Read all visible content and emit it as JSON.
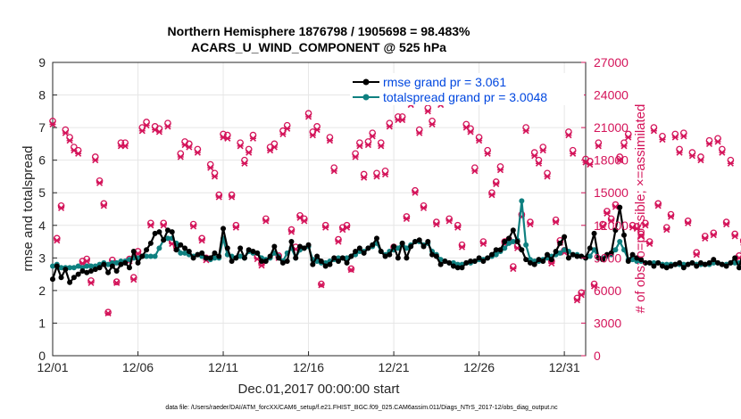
{
  "chart_data": {
    "type": "line",
    "title_line1": "Northern Hemisphere 1876798 / 1905698 = 98.483%",
    "title_line2": "ACARS_U_WIND_COMPONENT @ 525 hPa",
    "xlabel": "Dec.01,2017 00:00:00 start",
    "ylabel_left": "rmse and totalspread",
    "ylabel_right": "# of obs: o=possible; ×=assimilated",
    "footnote": "data file: /Users/raeder/DAI/ATM_forcXX/CAM6_setup/f.e21.FHIST_BGC.f09_025.CAM6assim.011/Diags_NTrS_2017-12/obs_diag_output.nc",
    "xlim": [
      1,
      32.25
    ],
    "ylim_left": [
      0,
      9
    ],
    "ylim_right": [
      0,
      27000
    ],
    "x_ticks": [
      1,
      6,
      11,
      16,
      21,
      26,
      31
    ],
    "x_tick_labels": [
      "12/01",
      "12/06",
      "12/11",
      "12/16",
      "12/21",
      "12/26",
      "12/31"
    ],
    "y_left_ticks": [
      "0",
      "1",
      "2",
      "3",
      "4",
      "5",
      "6",
      "7",
      "8",
      "9"
    ],
    "y_right_ticks": [
      "0",
      "3000",
      "6000",
      "9000",
      "12000",
      "15000",
      "18000",
      "21000",
      "24000",
      "27000"
    ],
    "colors": {
      "rmse": "#000000",
      "spread": "#0f8080",
      "obs": "#d4145a",
      "axis_right": "#d4145a",
      "legend_text": "#0047e0",
      "grid": "#e6e6e6"
    },
    "legend": [
      {
        "name": "rmse grand pr = 3.061",
        "color": "#000000"
      },
      {
        "name": "totalspread grand pr = 3.0048",
        "color": "#0f8080"
      }
    ],
    "series": [
      {
        "name": "rmse",
        "x_start": 1,
        "x_step": 0.25,
        "values": [
          2.35,
          2.75,
          2.4,
          2.65,
          2.25,
          2.4,
          2.5,
          2.6,
          2.55,
          2.6,
          2.65,
          2.7,
          2.8,
          2.55,
          2.75,
          2.6,
          2.8,
          2.85,
          2.7,
          3.2,
          2.85,
          3.05,
          3.25,
          3.45,
          3.75,
          3.8,
          3.55,
          3.85,
          3.8,
          3.25,
          3.4,
          3.3,
          3.2,
          3.0,
          3.1,
          3.15,
          3.0,
          3.0,
          3.15,
          3.05,
          3.9,
          3.3,
          2.9,
          3.0,
          3.3,
          3.0,
          3.25,
          3.2,
          3.15,
          2.9,
          2.9,
          3.05,
          3.35,
          3.0,
          2.85,
          2.9,
          3.5,
          3.0,
          3.35,
          3.3,
          3.4,
          2.8,
          3.05,
          2.9,
          2.75,
          2.8,
          3.0,
          2.9,
          3.0,
          2.85,
          3.05,
          3.2,
          3.3,
          3.15,
          3.3,
          3.4,
          3.6,
          3.2,
          3.05,
          3.1,
          3.35,
          3.0,
          3.45,
          3.0,
          3.35,
          3.5,
          3.55,
          3.35,
          3.5,
          3.1,
          3.05,
          2.8,
          2.9,
          2.85,
          2.75,
          2.7,
          2.7,
          2.85,
          2.9,
          2.9,
          3.0,
          2.9,
          3.0,
          3.1,
          3.25,
          3.25,
          3.5,
          3.6,
          3.85,
          3.5,
          3.25,
          2.95,
          2.85,
          2.8,
          2.95,
          2.9,
          3.1,
          2.95,
          3.2,
          3.45,
          3.65,
          3.0,
          3.1,
          3.05,
          3.05,
          3.0,
          3.3,
          3.75,
          3.0,
          2.95,
          3.1,
          3.15,
          3.85,
          4.55,
          3.7,
          2.9,
          3.1,
          3.0,
          2.95,
          2.85,
          2.85,
          2.75,
          2.85,
          2.75,
          2.7,
          2.75,
          2.8,
          2.85,
          2.7,
          2.8,
          2.85,
          2.75,
          2.85,
          2.8,
          2.85,
          2.95,
          2.85,
          2.8,
          2.75,
          2.85,
          3.0,
          2.7,
          3.2,
          3.0,
          2.75
        ],
        "marker": "circle"
      },
      {
        "name": "totalspread",
        "x_start": 1,
        "x_step": 0.25,
        "values": [
          2.75,
          2.8,
          2.7,
          2.7,
          2.7,
          2.7,
          2.75,
          2.7,
          2.75,
          2.75,
          2.75,
          2.8,
          2.85,
          2.8,
          2.85,
          2.85,
          2.9,
          2.9,
          2.95,
          3.0,
          3.0,
          3.05,
          3.05,
          3.05,
          3.05,
          3.3,
          3.55,
          3.6,
          3.6,
          3.45,
          3.15,
          3.15,
          3.1,
          3.05,
          3.1,
          3.05,
          3.0,
          2.95,
          3.0,
          3.0,
          3.6,
          3.1,
          3.05,
          3.0,
          3.05,
          3.0,
          3.2,
          3.15,
          3.15,
          3.0,
          2.95,
          3.0,
          3.15,
          3.05,
          2.9,
          3.15,
          3.3,
          3.0,
          3.25,
          3.3,
          3.35,
          2.95,
          2.9,
          2.85,
          2.85,
          2.9,
          2.95,
          3.0,
          3.0,
          3.0,
          3.05,
          3.1,
          3.2,
          3.2,
          3.3,
          3.35,
          3.45,
          3.2,
          3.1,
          3.2,
          3.25,
          3.3,
          3.45,
          3.3,
          3.4,
          3.5,
          3.5,
          3.4,
          3.45,
          3.2,
          3.1,
          2.95,
          2.9,
          2.85,
          2.85,
          2.8,
          2.8,
          2.85,
          2.85,
          2.9,
          2.95,
          2.95,
          3.0,
          3.05,
          3.1,
          3.2,
          3.3,
          3.45,
          3.5,
          3.55,
          4.75,
          3.4,
          2.95,
          2.9,
          2.9,
          2.95,
          3.0,
          3.05,
          3.1,
          3.15,
          3.25,
          3.2,
          3.1,
          3.1,
          3.05,
          3.0,
          3.05,
          3.25,
          3.0,
          3.0,
          3.05,
          3.1,
          3.25,
          3.5,
          3.25,
          2.95,
          2.95,
          2.9,
          2.9,
          2.85,
          2.85,
          2.85,
          2.85,
          2.8,
          2.8,
          2.8,
          2.8,
          2.8,
          2.8,
          2.8,
          2.85,
          2.8,
          2.8,
          2.8,
          2.8,
          2.85,
          2.85,
          2.8,
          2.8,
          2.85,
          2.85,
          2.85,
          2.95,
          3.6,
          2.9,
          2.85
        ],
        "marker": "circle"
      },
      {
        "name": "obs_possible",
        "axis": "right",
        "x_start": 1,
        "x_step": 0.25,
        "values": [
          21600,
          10800,
          13800,
          20800,
          20100,
          19200,
          18900,
          8700,
          8900,
          6900,
          18300,
          16100,
          14000,
          4000,
          8800,
          6800,
          19600,
          19600,
          8900,
          7200,
          9600,
          21000,
          21500,
          12200,
          21100,
          20900,
          12200,
          21400,
          10500,
          10100,
          18600,
          19700,
          19500,
          12100,
          19000,
          10800,
          9000,
          17600,
          16800,
          14800,
          20400,
          20300,
          14800,
          12000,
          19600,
          18000,
          19000,
          20300,
          9100,
          8500,
          12600,
          19200,
          19500,
          9200,
          20700,
          21200,
          11600,
          10000,
          12900,
          12600,
          22300,
          20600,
          21100,
          6600,
          12000,
          20100,
          17300,
          10700,
          11800,
          12000,
          8000,
          18600,
          19600,
          16700,
          19700,
          20500,
          16800,
          19600,
          17000,
          21400,
          10000,
          22000,
          22000,
          12800,
          23400,
          15200,
          20800,
          13800,
          22800,
          21600,
          12300,
          23400,
          24100,
          12600,
          23800,
          12000,
          10200,
          21300,
          20900,
          17300,
          20100,
          10500,
          18900,
          15000,
          16000,
          17400,
          10500,
          10700,
          8200,
          10100,
          13000,
          21000,
          12300,
          18700,
          18000,
          19200,
          16800,
          8700,
          12500,
          10600,
          9700,
          20600,
          18900,
          5300,
          5800,
          18100,
          17900,
          6600,
          19600,
          12100,
          13300,
          12600,
          13900,
          18300,
          19600,
          20400,
          12000,
          11900,
          11200,
          12200,
          10500,
          21000,
          14000,
          20200,
          11800,
          13000,
          20400,
          19000,
          20500,
          12400,
          18700,
          9500,
          18300,
          11000,
          19800,
          11300,
          20000,
          19000,
          12300,
          18000,
          11200,
          9200,
          10600,
          18100,
          18000,
          0
        ],
        "marker": "o"
      },
      {
        "name": "obs_assimilated",
        "axis": "right",
        "x_start": 1,
        "x_step": 0.25,
        "values": [
          21300,
          10600,
          13600,
          20500,
          19800,
          18900,
          18600,
          8500,
          8700,
          6700,
          18000,
          15900,
          13800,
          3900,
          8600,
          6700,
          19300,
          19300,
          8700,
          7000,
          9400,
          20700,
          21200,
          12000,
          20800,
          20600,
          12000,
          21100,
          10300,
          9900,
          18300,
          19400,
          19200,
          11900,
          18700,
          10600,
          8800,
          17300,
          16500,
          14600,
          20100,
          20000,
          14600,
          11800,
          19300,
          17700,
          18700,
          20000,
          8900,
          8300,
          12400,
          18900,
          19200,
          9000,
          20400,
          20900,
          11400,
          9800,
          12700,
          12400,
          22000,
          20300,
          20800,
          6500,
          11800,
          19800,
          17000,
          10500,
          11600,
          11800,
          7900,
          18300,
          19300,
          16400,
          19400,
          20200,
          16500,
          19300,
          16700,
          21100,
          9800,
          21700,
          21700,
          12600,
          23100,
          15000,
          20500,
          13600,
          22500,
          21300,
          12100,
          23100,
          23800,
          12400,
          23500,
          11800,
          10000,
          21000,
          20600,
          17000,
          19800,
          10300,
          18600,
          14800,
          15800,
          17100,
          10300,
          10500,
          8000,
          9900,
          12800,
          20700,
          12100,
          18400,
          17700,
          18900,
          16500,
          8500,
          12300,
          10400,
          9500,
          20300,
          18600,
          5100,
          5600,
          17800,
          17600,
          6400,
          19300,
          11900,
          13100,
          12400,
          13700,
          18000,
          19300,
          20100,
          11800,
          11700,
          11000,
          12000,
          10300,
          20700,
          13800,
          19900,
          11600,
          12800,
          20100,
          18700,
          20200,
          12200,
          18400,
          9300,
          18000,
          10800,
          19500,
          11100,
          19700,
          18700,
          12100,
          17700,
          11000,
          9000,
          10400,
          17800,
          17700,
          0
        ],
        "marker": "x"
      }
    ]
  }
}
